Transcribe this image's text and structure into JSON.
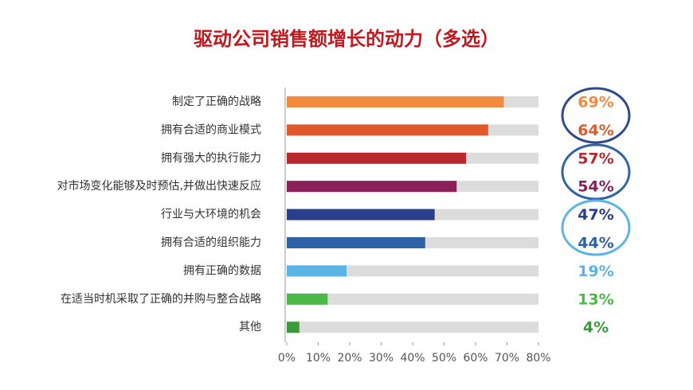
{
  "chart_data": {
    "type": "bar",
    "orientation": "horizontal",
    "title": "驱动公司销售额增长的动力（多选）",
    "categories": [
      "制定了正确的战略",
      "拥有合适的商业模式",
      "拥有强大的执行能力",
      "对市场变化能够及时预估,并做出快速反应",
      "行业与大环境的机会",
      "拥有合适的组织能力",
      "拥有正确的数据",
      "在适当时机采取了正确的并购与整合战略",
      "其他"
    ],
    "values": [
      69,
      64,
      57,
      54,
      47,
      44,
      19,
      13,
      4
    ],
    "value_labels": [
      "69%",
      "64%",
      "57%",
      "54%",
      "47%",
      "44%",
      "19%",
      "13%",
      "4%"
    ],
    "colors": [
      "#f28b3e",
      "#e0592a",
      "#b8282e",
      "#8a1f5a",
      "#2b3e8c",
      "#2f63a8",
      "#5ab4e5",
      "#4cb848",
      "#3a9a3a"
    ],
    "xlim": [
      0,
      80
    ],
    "xticks": [
      {
        "value": 0,
        "label": "0%"
      },
      {
        "value": 10,
        "label": "10%"
      },
      {
        "value": 20,
        "label": "20%"
      },
      {
        "value": 30,
        "label": "30%"
      },
      {
        "value": 40,
        "label": "40%"
      },
      {
        "value": 50,
        "label": "50%"
      },
      {
        "value": 60,
        "label": "60%"
      },
      {
        "value": 70,
        "label": "70%"
      },
      {
        "value": 80,
        "label": "80%"
      }
    ]
  }
}
